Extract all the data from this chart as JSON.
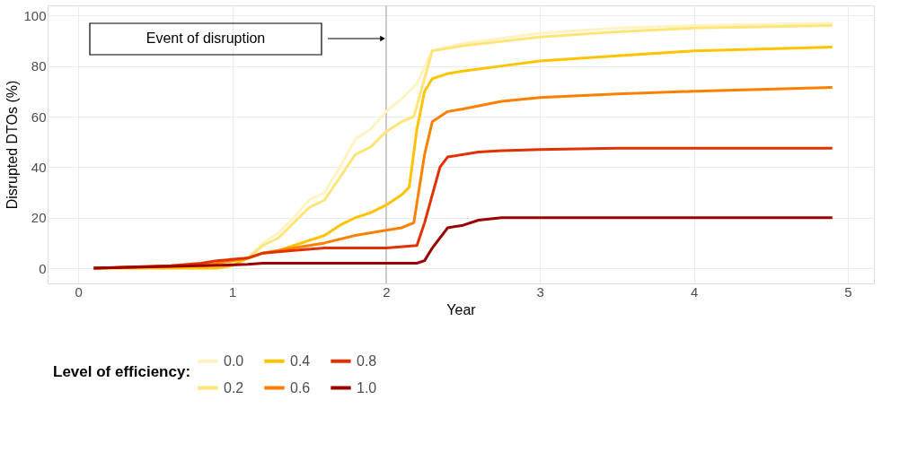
{
  "chart_data": {
    "type": "line",
    "xlabel": "Year",
    "ylabel": "Disrupted DTOs (%)",
    "legend_title": "Level of efficiency:",
    "legend": "bottom",
    "grid": true,
    "marker": "none",
    "line_style": "solid",
    "xlim": [
      -0.2,
      5.17
    ],
    "xticks": [
      0,
      1,
      2,
      3,
      4,
      5
    ],
    "ylim": [
      -6,
      104
    ],
    "yticks": [
      0,
      20,
      40,
      60,
      80,
      100
    ],
    "ref_lines": [
      {
        "axis": "x",
        "value": 2,
        "color": "#b0b0b0"
      }
    ],
    "annotations": [
      "Event of disruption"
    ],
    "series": [
      {
        "name": "0.0",
        "color": "#fff3c2",
        "x": [
          0.1,
          0.9,
          1.0,
          1.1,
          1.2,
          1.3,
          1.4,
          1.5,
          1.6,
          1.7,
          1.8,
          1.9,
          2.0,
          2.1,
          2.2,
          2.3,
          2.5,
          2.75,
          3.0,
          3.5,
          4.0,
          4.9
        ],
        "values": [
          0,
          0,
          2,
          4,
          10,
          14,
          20,
          27,
          30,
          40,
          51,
          55,
          62,
          67,
          73,
          86,
          89,
          91,
          93,
          95,
          96,
          97
        ]
      },
      {
        "name": "0.2",
        "color": "#ffe47a",
        "x": [
          0.1,
          0.9,
          1.1,
          1.2,
          1.3,
          1.4,
          1.5,
          1.6,
          1.7,
          1.8,
          1.9,
          2.0,
          2.1,
          2.18,
          2.3,
          2.5,
          3.0,
          3.5,
          4.0,
          4.9
        ],
        "values": [
          0,
          1,
          4,
          9,
          12,
          18,
          24,
          27,
          36,
          45,
          48,
          54,
          58,
          60,
          86,
          88,
          91.5,
          93.5,
          95,
          96
        ]
      },
      {
        "name": "0.4",
        "color": "#ffc300",
        "x": [
          0.1,
          0.9,
          1.0,
          1.1,
          1.2,
          1.3,
          1.4,
          1.5,
          1.6,
          1.7,
          1.8,
          1.9,
          2.0,
          2.1,
          2.15,
          2.2,
          2.25,
          2.3,
          2.4,
          2.5,
          2.75,
          3.0,
          3.5,
          4.0,
          4.9
        ],
        "values": [
          0,
          0,
          1,
          4,
          6,
          7,
          9,
          11,
          13,
          17,
          20,
          22,
          25,
          29,
          32,
          55,
          70,
          75,
          77,
          78,
          80,
          82,
          84,
          86,
          87.5
        ]
      },
      {
        "name": "0.6",
        "color": "#ff7f00",
        "x": [
          0.1,
          0.7,
          0.9,
          1.1,
          1.2,
          1.4,
          1.6,
          1.8,
          2.0,
          2.1,
          2.18,
          2.25,
          2.3,
          2.4,
          2.5,
          2.75,
          3.0,
          3.5,
          4.0,
          4.9
        ],
        "values": [
          0,
          1,
          2,
          4,
          6,
          8,
          10,
          13,
          15,
          16,
          18,
          45,
          58,
          62,
          63,
          66,
          67.5,
          69,
          70,
          71.5
        ]
      },
      {
        "name": "0.8",
        "color": "#e03200",
        "x": [
          0.1,
          0.6,
          0.8,
          0.9,
          1.1,
          1.2,
          1.4,
          1.6,
          2.0,
          2.2,
          2.25,
          2.35,
          2.4,
          2.6,
          2.75,
          3.0,
          3.5,
          4.9
        ],
        "values": [
          0,
          1,
          2,
          3,
          4,
          6,
          7,
          8,
          8,
          9,
          18,
          40,
          44,
          46,
          46.5,
          47,
          47.5,
          47.5
        ]
      },
      {
        "name": "1.0",
        "color": "#9b0000",
        "x": [
          0.1,
          0.8,
          1.1,
          1.2,
          2.2,
          2.25,
          2.3,
          2.4,
          2.5,
          2.6,
          2.75,
          4.9
        ],
        "values": [
          0,
          1,
          1.5,
          2,
          2,
          3,
          8,
          16,
          17,
          19,
          20,
          20
        ]
      }
    ]
  }
}
